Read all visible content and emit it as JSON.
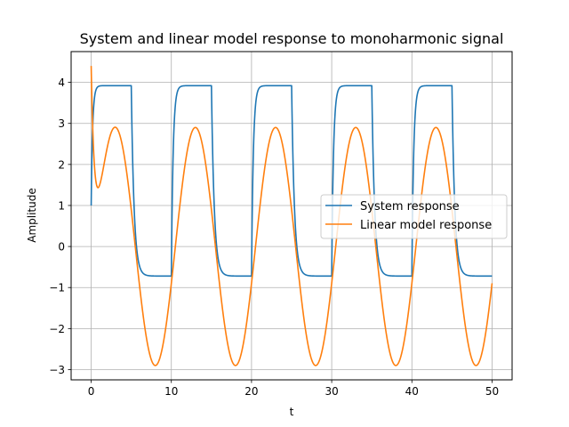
{
  "chart_data": {
    "type": "line",
    "title": "System and linear model response to monoharmonic signal",
    "xlabel": "t",
    "ylabel": "Amplitude",
    "xlim": [
      -2.5,
      52.5
    ],
    "ylim": [
      -3.25,
      4.75
    ],
    "xticks": [
      0,
      10,
      20,
      30,
      40,
      50
    ],
    "yticks": [
      -3,
      -2,
      -1,
      0,
      1,
      2,
      3,
      4
    ],
    "ytick_labels": [
      "−3",
      "−2",
      "−1",
      "0",
      "1",
      "2",
      "3",
      "4"
    ],
    "grid": true,
    "legend": {
      "placement": "center-right"
    },
    "colors": {
      "system": "#1f77b4",
      "linear": "#ff7f0e"
    },
    "series": [
      {
        "name": "System response",
        "model": "square wave, period 10, high 3.92 on [0,5), low -0.72 on [5,10), start value 1.0",
        "period": 10,
        "high": 3.92,
        "low": -0.72,
        "start": 1.0
      },
      {
        "name": "Linear model response",
        "model": "offset sinusoid with decaying transient",
        "offset": 0.0,
        "amplitude": 2.9,
        "peak_times": [
          3,
          13,
          23,
          33,
          43
        ],
        "trough_times": [
          8,
          18,
          28,
          38,
          48
        ],
        "start": 4.4,
        "first_min": {
          "x": 0.8,
          "y": 1.42
        }
      }
    ]
  }
}
